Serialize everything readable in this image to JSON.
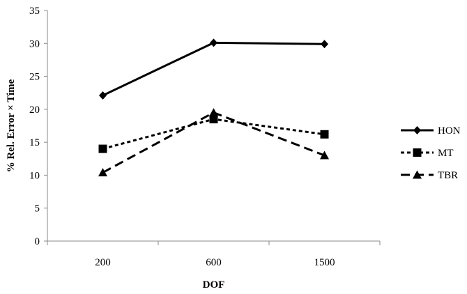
{
  "chart_data": {
    "type": "line",
    "categories": [
      "200",
      "600",
      "1500"
    ],
    "xlabel": "DOF",
    "ylabel": "% Rel. Error × Time",
    "ylim": [
      0,
      35
    ],
    "yticks": [
      0,
      5,
      10,
      15,
      20,
      25,
      30,
      35
    ],
    "grid": false,
    "legend_position": "right",
    "series": [
      {
        "name": "HON",
        "values": [
          22.1,
          30.1,
          29.9
        ],
        "marker": "diamond",
        "dash": "solid"
      },
      {
        "name": "MT",
        "values": [
          14.0,
          18.5,
          16.2
        ],
        "marker": "square",
        "dash": "short-dash"
      },
      {
        "name": "TBR",
        "values": [
          10.4,
          19.5,
          13.0
        ],
        "marker": "triangle",
        "dash": "long-dash"
      }
    ]
  }
}
